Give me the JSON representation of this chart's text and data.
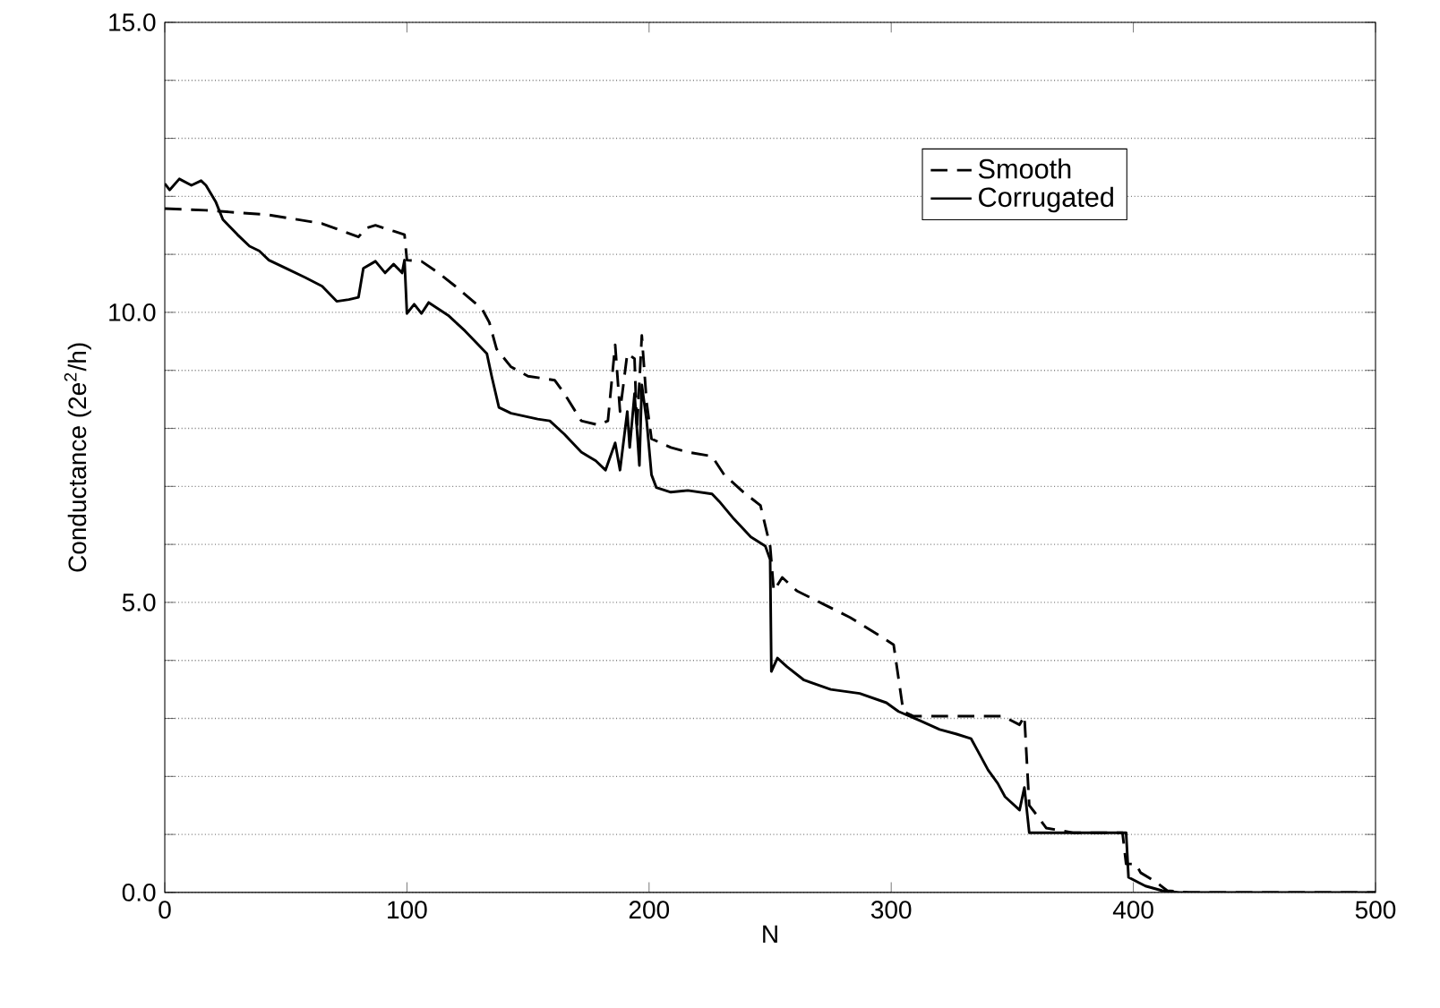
{
  "chart_data": {
    "type": "line",
    "xlabel": "N",
    "ylabel": "Conductance (2e$^{2}$/h)",
    "xlim": [
      0,
      500
    ],
    "ylim": [
      0,
      15
    ],
    "xticks": [
      0,
      100,
      200,
      300,
      400,
      500
    ],
    "yticks": [
      {
        "value": 0,
        "label": "0.0"
      },
      {
        "value": 1,
        "label": null
      },
      {
        "value": 2,
        "label": null
      },
      {
        "value": 3,
        "label": null
      },
      {
        "value": 4,
        "label": null
      },
      {
        "value": 5,
        "label": "5.0"
      },
      {
        "value": 6,
        "label": null
      },
      {
        "value": 7,
        "label": null
      },
      {
        "value": 8,
        "label": null
      },
      {
        "value": 9,
        "label": null
      },
      {
        "value": 10,
        "label": "10.0"
      },
      {
        "value": 11,
        "label": null
      },
      {
        "value": 12,
        "label": null
      },
      {
        "value": 13,
        "label": null
      },
      {
        "value": 14,
        "label": null
      },
      {
        "value": 15,
        "label": "15.0"
      }
    ],
    "grid": "y",
    "legend": "top right",
    "marker": "none",
    "series": [
      {
        "name": "Smooth",
        "color": "#000000",
        "line_style": "dashed",
        "x": [
          0,
          17,
          43,
          65,
          80,
          83,
          87,
          94.5,
          99,
          100,
          106,
          113,
          120,
          131,
          134,
          137,
          143,
          150,
          161,
          165,
          172,
          179,
          183,
          186,
          188,
          191,
          194,
          195,
          197,
          199,
          201,
          209,
          216,
          226,
          231,
          239,
          246,
          250,
          251.5,
          255,
          261,
          272,
          283,
          292,
          298,
          301,
          305,
          309,
          331,
          346,
          353,
          355,
          357,
          360,
          364,
          375,
          395.5,
          397,
          401,
          403,
          409,
          414,
          423,
          500
        ],
        "values": [
          11.79,
          11.76,
          11.68,
          11.53,
          11.3,
          11.45,
          11.5,
          11.4,
          11.34,
          10.9,
          10.88,
          10.68,
          10.45,
          10.06,
          9.83,
          9.37,
          9.06,
          8.9,
          8.83,
          8.6,
          8.13,
          8.06,
          8.13,
          9.44,
          8.29,
          9.29,
          9.2,
          7.98,
          9.6,
          8.44,
          7.82,
          7.67,
          7.59,
          7.52,
          7.2,
          6.9,
          6.67,
          5.97,
          5.2,
          5.43,
          5.2,
          4.97,
          4.74,
          4.51,
          4.35,
          4.27,
          3.12,
          3.04,
          3.04,
          3.04,
          2.89,
          3.04,
          1.5,
          1.34,
          1.11,
          1.03,
          1.03,
          0.49,
          0.49,
          0.34,
          0.19,
          0.03,
          0,
          0
        ]
      },
      {
        "name": "Corrugated",
        "color": "#000000",
        "line_style": "solid",
        "x": [
          0,
          2,
          6,
          11,
          15,
          17,
          21,
          24,
          30,
          35,
          39,
          43,
          50,
          58,
          65,
          71,
          76,
          80,
          82,
          87,
          91,
          94.5,
          98,
          99,
          100,
          103,
          106,
          109,
          117,
          124,
          133,
          135,
          138,
          143,
          154,
          159,
          165,
          172,
          178,
          182,
          186,
          188,
          191,
          192,
          194,
          196,
          197,
          199,
          201,
          203,
          209,
          216,
          226,
          229,
          235,
          242,
          248,
          250,
          250.5,
          253,
          257,
          264,
          275,
          287,
          298,
          303,
          312,
          320,
          327,
          333,
          336,
          340,
          344,
          347,
          353,
          355,
          357,
          375,
          397,
          398,
          405,
          412,
          419,
          500
        ],
        "values": [
          12.22,
          12.11,
          12.3,
          12.19,
          12.27,
          12.19,
          11.91,
          11.6,
          11.34,
          11.14,
          11.06,
          10.9,
          10.76,
          10.6,
          10.45,
          10.19,
          10.22,
          10.26,
          10.76,
          10.88,
          10.68,
          10.83,
          10.68,
          10.9,
          9.98,
          10.14,
          9.98,
          10.17,
          9.95,
          9.68,
          9.29,
          8.9,
          8.36,
          8.26,
          8.16,
          8.13,
          7.9,
          7.59,
          7.44,
          7.28,
          7.75,
          7.28,
          8.29,
          7.67,
          8.6,
          7.36,
          8.75,
          8.13,
          7.2,
          6.98,
          6.9,
          6.93,
          6.87,
          6.74,
          6.44,
          6.13,
          5.97,
          5.74,
          3.81,
          4.04,
          3.89,
          3.66,
          3.5,
          3.43,
          3.27,
          3.12,
          2.96,
          2.81,
          2.73,
          2.65,
          2.42,
          2.11,
          1.88,
          1.65,
          1.42,
          1.81,
          1.03,
          1.03,
          1.03,
          0.26,
          0.11,
          0.03,
          0,
          0
        ]
      }
    ]
  }
}
